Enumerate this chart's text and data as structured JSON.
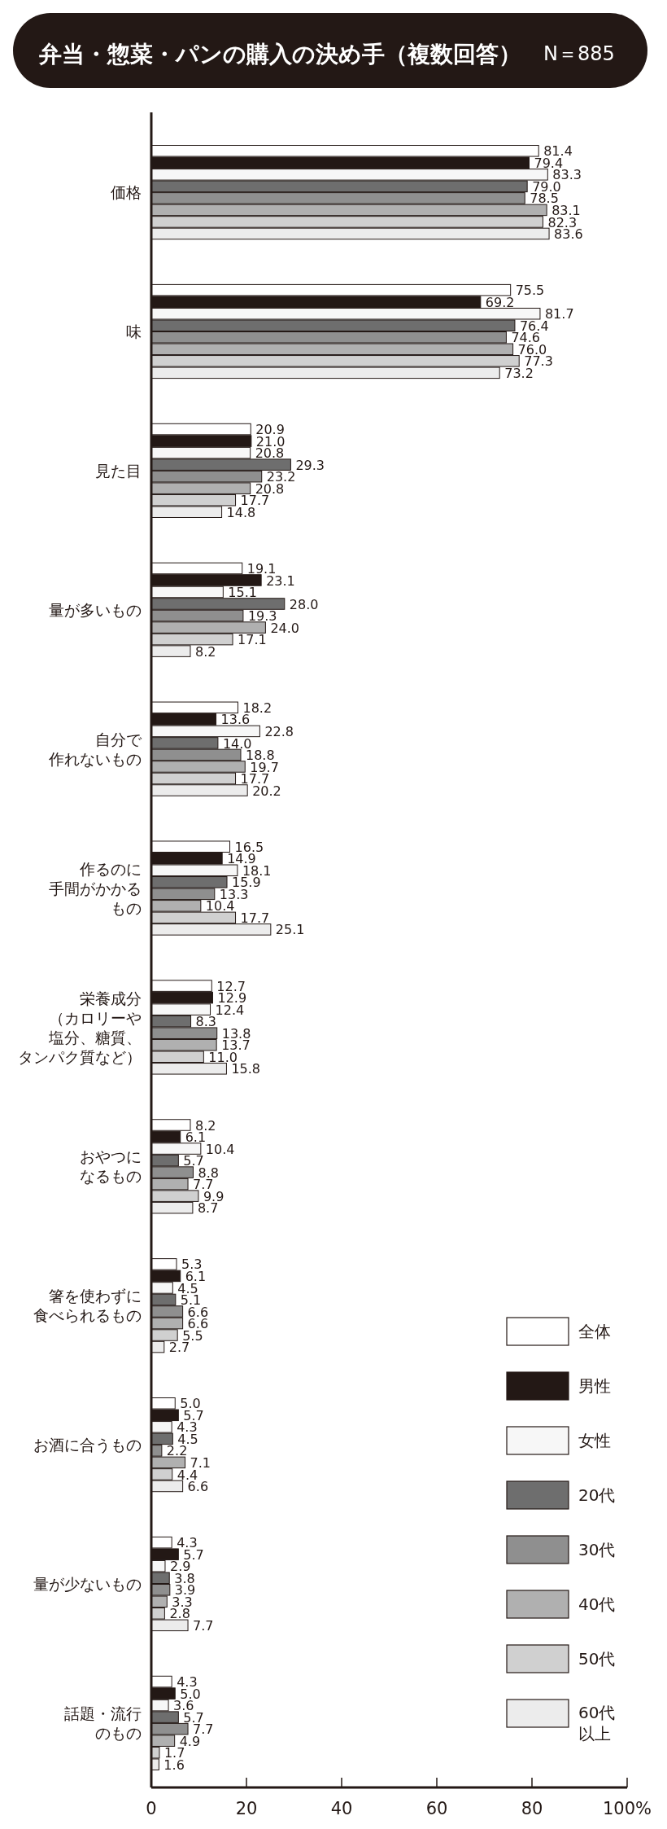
{
  "chart_data": {
    "type": "bar",
    "orientation": "horizontal",
    "title": "弁当・惣菜・パンの購入の決め手（複数回答）",
    "subtitle": "N＝885",
    "categories": [
      "価格",
      "味",
      "見た目",
      "量が多いもの",
      "自分で作れないもの",
      "作るのに手間がかかるもの",
      "栄養成分（カロリーや塩分、糖質、タンパク質など）",
      "おやつになるもの",
      "箸を使わずに食べられるもの",
      "お酒に合うもの",
      "量が少ないもの",
      "話題・流行のもの"
    ],
    "series": [
      {
        "name": "全体",
        "color": "#ffffff",
        "values": [
          81.4,
          75.5,
          20.9,
          19.1,
          18.2,
          16.5,
          12.7,
          8.2,
          5.3,
          5.0,
          4.3,
          4.3
        ],
        "value_labels": [
          "81.4",
          "75.5",
          "20.9",
          "19.1",
          "18.2",
          "16.5",
          "12.7",
          "8.2",
          "5.3",
          "5.0",
          "4.3",
          "4.3"
        ]
      },
      {
        "name": "男性",
        "color": "#231815",
        "values": [
          79.4,
          69.2,
          21.0,
          23.1,
          13.6,
          14.9,
          12.9,
          6.1,
          6.1,
          5.7,
          5.7,
          5.0
        ],
        "value_labels": [
          "79.4",
          "69.2",
          "21.0",
          "23.1",
          "13.6",
          "14.9",
          "12.9",
          "6.1",
          "6.1",
          "5.7",
          "5.7",
          "5.0"
        ]
      },
      {
        "name": "女性",
        "color": "#f7f7f7",
        "values": [
          83.3,
          81.7,
          20.8,
          15.1,
          22.8,
          18.1,
          12.4,
          10.4,
          4.5,
          4.3,
          2.9,
          3.6
        ],
        "value_labels": [
          "83.3",
          "81.7",
          "20.8",
          "15.1",
          "22.8",
          "18.1",
          "12.4",
          "10.4",
          "4.5",
          "4.3",
          "2.9",
          "3.6"
        ]
      },
      {
        "name": "20代",
        "color": "#6e6e6e",
        "values": [
          79.0,
          76.4,
          29.3,
          28.0,
          14.0,
          15.9,
          8.3,
          5.7,
          5.1,
          4.5,
          3.8,
          5.7
        ],
        "value_labels": [
          "79.0",
          "76.4",
          "29.3",
          "28.0",
          "14.0",
          "15.9",
          "8.3",
          "5.7",
          "5.1",
          "4.5",
          "3.8",
          "5.7"
        ]
      },
      {
        "name": "30代",
        "color": "#8f8f8f",
        "values": [
          78.5,
          74.6,
          23.2,
          19.3,
          18.8,
          13.3,
          13.8,
          8.8,
          6.6,
          2.2,
          3.9,
          7.7
        ],
        "value_labels": [
          "78.5",
          "74.6",
          "23.2",
          "19.3",
          "18.8",
          "13.3",
          "13.8",
          "8.8",
          "6.6",
          "2.2",
          "3.9",
          "7.7"
        ]
      },
      {
        "name": "40代",
        "color": "#b0b0b0",
        "values": [
          83.1,
          76.0,
          20.8,
          24.0,
          19.7,
          10.4,
          13.7,
          7.7,
          6.6,
          7.1,
          3.3,
          4.9
        ],
        "value_labels": [
          "83.1",
          "76.0",
          "20.8",
          "24.0",
          "19.7",
          "10.4",
          "13.7",
          "7.7",
          "6.6",
          "7.1",
          "3.3",
          "4.9"
        ]
      },
      {
        "name": "50代",
        "color": "#d0d0d0",
        "values": [
          82.3,
          77.3,
          17.7,
          17.1,
          17.7,
          17.7,
          11.0,
          9.9,
          5.5,
          4.4,
          2.8,
          1.7
        ],
        "value_labels": [
          "82.3",
          "77.3",
          "17.7",
          "17.1",
          "17.7",
          "17.7",
          "11.0",
          "9.9",
          "5.5",
          "4.4",
          "2.8",
          "1.7"
        ]
      },
      {
        "name": "60代以上",
        "color": "#ececec",
        "values": [
          83.6,
          73.2,
          14.8,
          8.2,
          20.2,
          25.1,
          15.8,
          8.7,
          2.7,
          6.6,
          7.7,
          1.6
        ],
        "value_labels": [
          "83.6",
          "73.2",
          "14.8",
          "8.2",
          "20.2",
          "25.1",
          "15.8",
          "8.7",
          "2.7",
          "6.6",
          "7.7",
          "1.6"
        ]
      }
    ],
    "xlim": [
      0,
      100
    ],
    "xticks": [
      0,
      20,
      40,
      60,
      80,
      {
        "value": 100,
        "label": "100%"
      }
    ],
    "legend": "bottom right"
  }
}
